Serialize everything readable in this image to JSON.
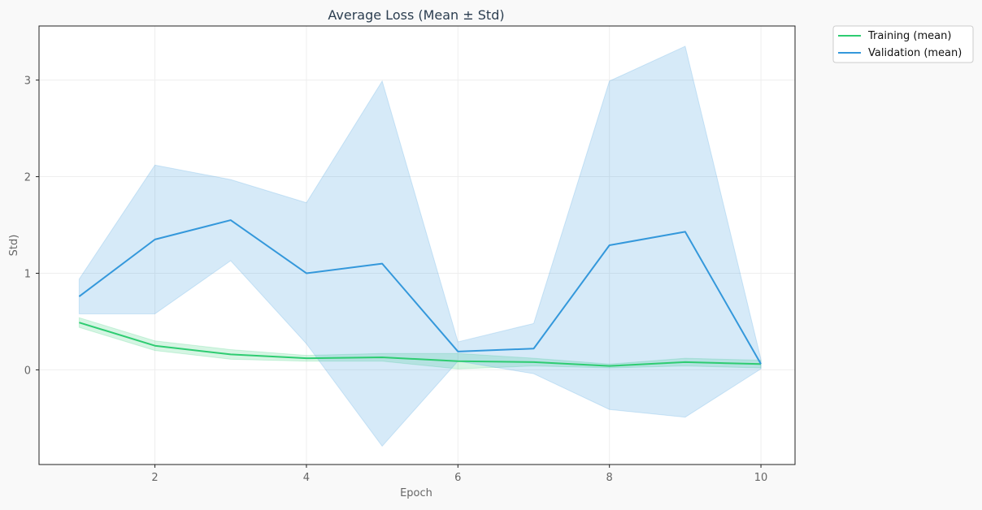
{
  "chart_data": {
    "type": "line",
    "title": "Average Loss (Mean ± Std)",
    "xlabel": "Epoch",
    "ylabel": "Std)",
    "x": [
      1,
      2,
      3,
      4,
      5,
      6,
      7,
      8,
      9,
      10
    ],
    "xlim": [
      0.47,
      10.45
    ],
    "ylim": [
      -0.98,
      3.56
    ],
    "xticks": [
      2,
      4,
      6,
      8,
      10
    ],
    "yticks": [
      0,
      1,
      2,
      3
    ],
    "grid": true,
    "legend_position": "outside top-right",
    "series": [
      {
        "name": "Training (mean)",
        "color": "#2ecc71",
        "mean": [
          0.49,
          0.25,
          0.16,
          0.12,
          0.13,
          0.09,
          0.08,
          0.04,
          0.08,
          0.06
        ],
        "std": [
          0.05,
          0.05,
          0.05,
          0.03,
          0.04,
          0.08,
          0.04,
          0.02,
          0.04,
          0.04
        ]
      },
      {
        "name": "Validation (mean)",
        "color": "#3498db",
        "mean": [
          0.76,
          1.35,
          1.55,
          1.0,
          1.1,
          0.19,
          0.22,
          1.29,
          1.43,
          0.06
        ],
        "std": [
          0.18,
          0.77,
          0.42,
          0.73,
          1.89,
          0.1,
          0.26,
          1.7,
          1.92,
          0.05
        ]
      }
    ]
  }
}
